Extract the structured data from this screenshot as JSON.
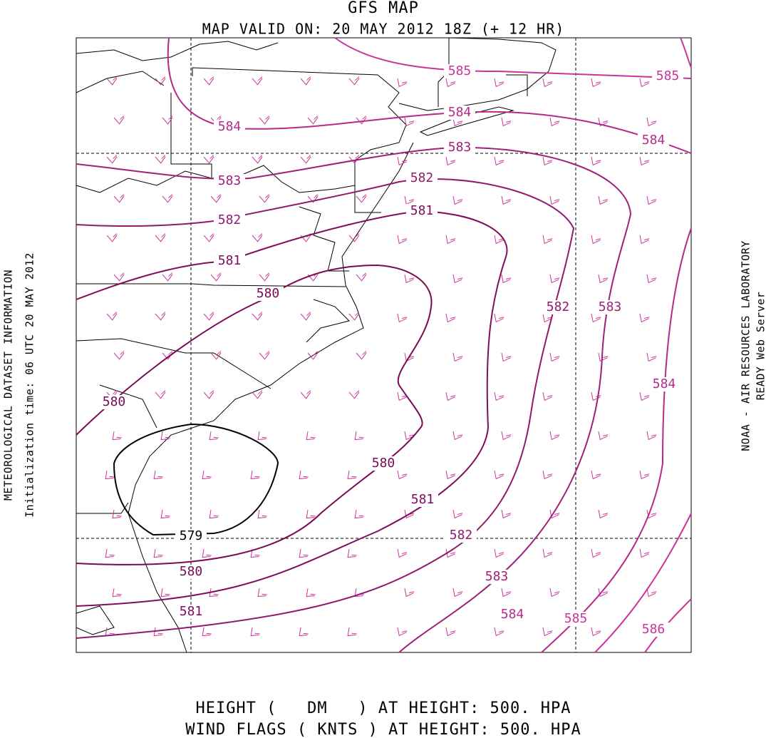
{
  "header": {
    "title": "GFS MAP",
    "subtitle": "MAP VALID ON: 20 MAY 2012 18Z (+ 12 HR)"
  },
  "left_info": {
    "line1": "METEOROLOGICAL DATASET INFORMATION",
    "line2": "Initialization time: 06 UTC 20 MAY 2012"
  },
  "right_info": {
    "line1": "NOAA - AIR RESOURCES LABORATORY",
    "line2": "READY Web Server"
  },
  "footer": {
    "line1": "HEIGHT (   DM   ) AT HEIGHT: 500. HPA",
    "line2": "WIND FLAGS ( KNTS ) AT HEIGHT: 500. HPA"
  },
  "contour_labels": [
    "585",
    "585",
    "584",
    "584",
    "584",
    "583",
    "583",
    "582",
    "582",
    "581",
    "581",
    "580",
    "582",
    "583",
    "584",
    "580",
    "580",
    "581",
    "579",
    "582",
    "583",
    "580",
    "584",
    "585",
    "581",
    "586"
  ]
}
